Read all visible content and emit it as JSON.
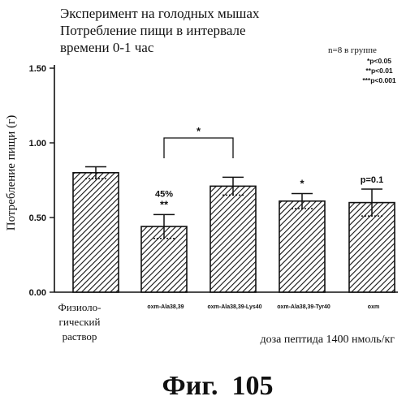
{
  "chart_data": {
    "type": "bar",
    "title": [
      "Эксперимент на голодных мышах",
      "Потребление пищи в интервале",
      "времени 0-1 час"
    ],
    "ylabel": "Потребление пищи (г)",
    "xlabel": "доза пептида 1400 нмоль/кг",
    "ylim": [
      0,
      1.5
    ],
    "yticks": [
      0,
      0.5,
      1,
      1.5
    ],
    "ytick_labels": [
      "0.00",
      "0.50",
      "1.00",
      "1.50"
    ],
    "categories": [
      [
        "Физиоло-",
        "гический",
        "раствор"
      ],
      [
        "oxm-Ala38,39"
      ],
      [
        "oxm-Ala38,39-Lys40"
      ],
      [
        "oxm-Ala38,39-Tyr40"
      ],
      [
        "oxm"
      ]
    ],
    "values": [
      0.8,
      0.44,
      0.71,
      0.61,
      0.6
    ],
    "errors": [
      0.04,
      0.08,
      0.06,
      0.05,
      0.09
    ],
    "bar_annotations": [
      "",
      "45%",
      "",
      "",
      "p=0.1"
    ],
    "significance": [
      "",
      "**",
      "",
      "*",
      ""
    ],
    "bracket": {
      "from": 1,
      "to": 2,
      "label": "*"
    },
    "legend_note": {
      "group": "n=8 в группе",
      "lines": [
        "*p<0.05",
        "**p<0.01",
        "***p<0.001"
      ]
    },
    "figure_label": "Фиг.  105",
    "hatch": "diagonal"
  }
}
